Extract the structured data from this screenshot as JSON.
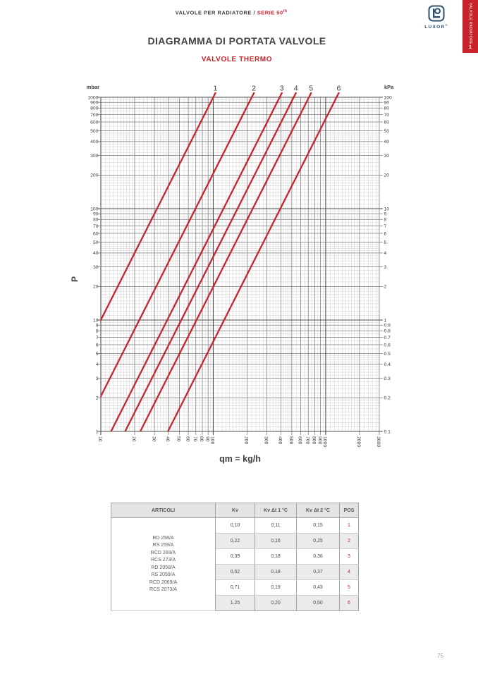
{
  "colors": {
    "accent_red": "#c9242b",
    "curve_red": "#c4262b",
    "logo_navy": "#2b506e",
    "grid_decade": "#4e4e4e",
    "grid_major": "#787878",
    "grid_minor": "#c8c8c8"
  },
  "page": {
    "breadcrumb": {
      "left": "VALVOLE PER RADIATORE / ",
      "serie": "SERIE 50",
      "serie_sup": "th"
    },
    "title": "DIAGRAMMA DI PORTATA VALVOLE",
    "subtitle": "VALVOLE THERMO",
    "logo": {
      "text": "LUXOR",
      "reg": "®"
    },
    "side_tab": {
      "label": "VALVOLE RADIATORE",
      "number": "1"
    },
    "page_number": "75"
  },
  "chart_data": {
    "type": "line",
    "scale": "log-log",
    "title": "",
    "x_axis": {
      "label": "qm = kg/h",
      "range": [
        10,
        3000
      ],
      "ticks": [
        "10",
        "20",
        "30",
        "40",
        "50",
        "60",
        "70",
        "80",
        "90",
        "100",
        "200",
        "300",
        "400",
        "500",
        "600",
        "700",
        "800",
        "900",
        "1000",
        "2000",
        "3000"
      ]
    },
    "y_axis_left": {
      "label": "P",
      "unit": "mbar",
      "range": [
        1,
        1000
      ],
      "ticks": [
        "1000",
        "900",
        "800",
        "700",
        "600",
        "500",
        "400",
        "300",
        "200",
        "100",
        "90",
        "80",
        "70",
        "60",
        "50",
        "40",
        "30",
        "20",
        "10",
        "9",
        "8",
        "7",
        "6",
        "5",
        "4",
        "3",
        "2",
        "1"
      ]
    },
    "y_axis_right": {
      "unit": "kPa",
      "range": [
        0.1,
        100
      ],
      "ticks": [
        "100",
        "90",
        "80",
        "70",
        "60",
        "50",
        "40",
        "30",
        "20",
        "10",
        "9",
        "8",
        "7",
        "6",
        "5",
        "4",
        "3",
        "2",
        "1",
        "0.9",
        "0.8",
        "0.7",
        "0.6",
        "0.5",
        "0.4",
        "0.3",
        "0.2",
        "0.1"
      ]
    },
    "model": "dp_mbar = 1000 * (qm_kgh / (1000 * Kv))^2",
    "series": [
      {
        "label": "1",
        "kv_m3h": 0.1
      },
      {
        "label": "2",
        "kv_m3h": 0.22
      },
      {
        "label": "3",
        "kv_m3h": 0.39
      },
      {
        "label": "4",
        "kv_m3h": 0.52
      },
      {
        "label": "5",
        "kv_m3h": 0.71
      },
      {
        "label": "6",
        "kv_m3h": 1.25
      }
    ],
    "grid": "on",
    "legend": "curve numbers above plot map to POS column of table"
  },
  "table": {
    "headers": [
      "ARTICOLI",
      "Kv",
      "Kv Δt 1 °C",
      "Kv Δt 2 °C",
      "POS"
    ],
    "articoli": [
      "RD 258/A",
      "RS 259/A",
      "RCD 269/A",
      "RCS 273/A",
      "RD 2058/A",
      "RS 2059/A",
      "RCD 2069/A",
      "RCS 2073/A"
    ],
    "rows": [
      [
        "0,10",
        "0,11",
        "0,15",
        "1"
      ],
      [
        "0,22",
        "0,16",
        "0,25",
        "2"
      ],
      [
        "0,39",
        "0,18",
        "0,36",
        "3"
      ],
      [
        "0,52",
        "0,18",
        "0,37",
        "4"
      ],
      [
        "0,71",
        "0,19",
        "0,43",
        "5"
      ],
      [
        "1,25",
        "0,20",
        "0,50",
        "6"
      ]
    ]
  }
}
